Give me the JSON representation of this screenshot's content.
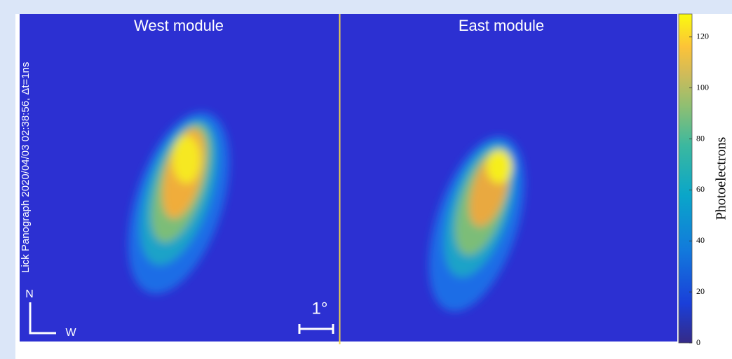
{
  "panels": [
    {
      "title": "West module"
    },
    {
      "title": "East module"
    }
  ],
  "annotation": "Lick Panograph 2020/04/03 02:38:56, Δt=1ns",
  "compass": {
    "north": "N",
    "west": "W"
  },
  "scale_bar": "1°",
  "colorbar": {
    "label": "Photoelectrons",
    "lim": [
      0,
      129
    ],
    "ticks": [
      0,
      20,
      40,
      60,
      80,
      100,
      120
    ]
  }
}
